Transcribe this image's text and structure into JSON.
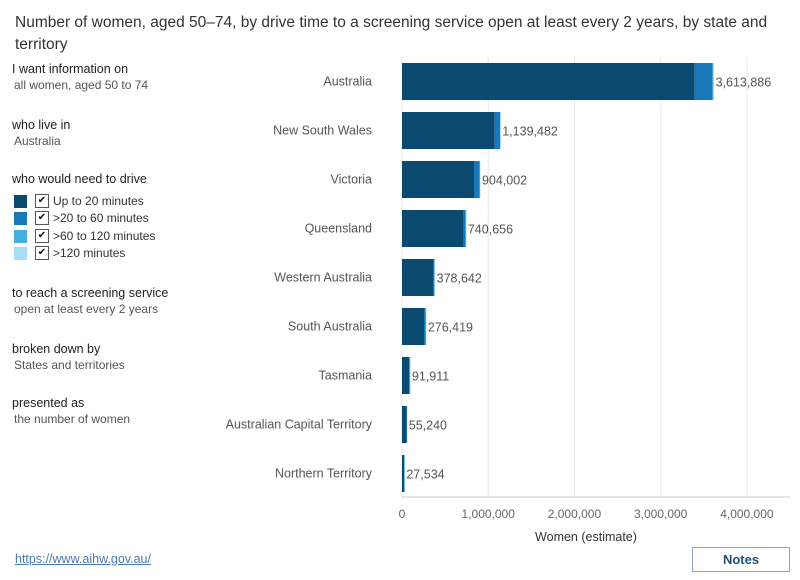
{
  "title": "Number of women, aged 50–74, by drive time to a screening service open at least every 2 years, by state and territory",
  "panel": {
    "info_heading": "I want information on",
    "info_value": "all women, aged 50 to 74",
    "live_heading": "who live in",
    "live_value": "Australia",
    "drive_heading": "who would need to drive",
    "reach_heading": "to reach a screening service",
    "reach_value": "open at least every 2 years",
    "breakdown_heading": "broken down by",
    "breakdown_value": "States and territories",
    "presented_heading": "presented as",
    "presented_value": "the number of women"
  },
  "legend": [
    {
      "label": "Up to 20 minutes",
      "color": "#0b4a70",
      "checked": true
    },
    {
      "label": ">20 to 60 minutes",
      "color": "#1878b8",
      "checked": true
    },
    {
      "label": ">60 to 120 minutes",
      "color": "#45b0e0",
      "checked": true
    },
    {
      "label": ">120 minutes",
      "color": "#a6dcf4",
      "checked": true
    }
  ],
  "check_glyph": "✔",
  "link_text": "https://www.aihw.gov.au/",
  "notes_label": "Notes",
  "chart_data": {
    "type": "bar",
    "orientation": "horizontal",
    "stacked": true,
    "categories": [
      "Australia",
      "New South Wales",
      "Victoria",
      "Queensland",
      "Western Australia",
      "South Australia",
      "Tasmania",
      "Australian Capital Territory",
      "Northern Territory"
    ],
    "series": [
      {
        "name": "Up to 20 minutes",
        "color": "#0b4a70",
        "values": [
          3395000,
          1075000,
          835000,
          715000,
          360000,
          255000,
          82000,
          52000,
          25000
        ]
      },
      {
        "name": ">20 to 60 minutes",
        "color": "#1878b8",
        "values": [
          205000,
          62000,
          65000,
          24000,
          15000,
          19000,
          9000,
          3000,
          2000
        ]
      },
      {
        "name": ">60 to 120 minutes",
        "color": "#45b0e0",
        "values": [
          11000,
          2000,
          3000,
          1500,
          2500,
          2000,
          800,
          240,
          400
        ]
      },
      {
        "name": ">120 minutes",
        "color": "#a6dcf4",
        "values": [
          2886,
          482,
          1002,
          156,
          1142,
          419,
          111,
          0,
          134
        ]
      }
    ],
    "totals": [
      "3,613,886",
      "1,139,482",
      "904,002",
      "740,656",
      "378,642",
      "276,419",
      "91,911",
      "55,240",
      "27,534"
    ],
    "xlabel": "Women (estimate)",
    "ylabel": "",
    "xlim": [
      0,
      4500000
    ],
    "xticks": [
      0,
      1000000,
      2000000,
      3000000,
      4000000
    ],
    "xtick_labels": [
      "0",
      "1,000,000",
      "2,000,000",
      "3,000,000",
      "4,000,000"
    ],
    "grid": true,
    "legend": "left-panel"
  }
}
